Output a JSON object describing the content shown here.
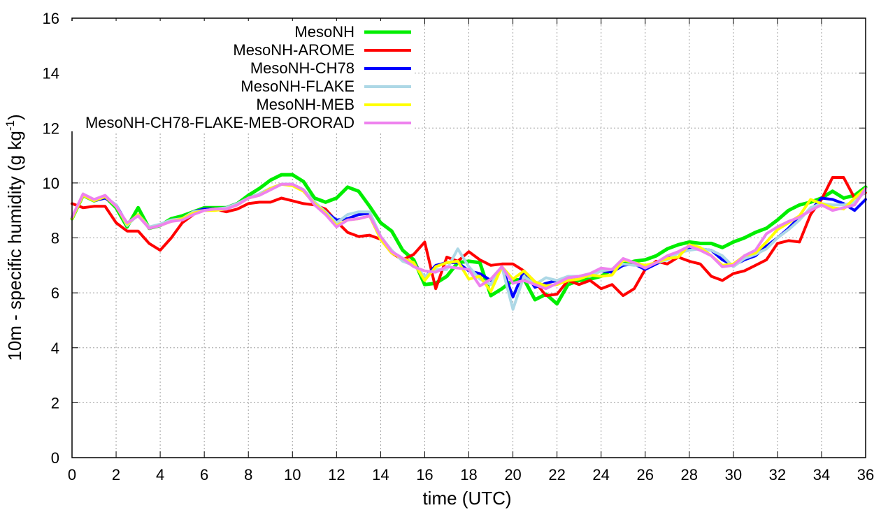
{
  "chart_data": {
    "type": "line",
    "title": "",
    "xlabel": "time (UTC)",
    "ylabel_main": "10m - specific humidity (g kg",
    "ylabel_sup": "-1",
    "ylabel_close": ")",
    "xlim": [
      0,
      36
    ],
    "ylim": [
      0,
      16
    ],
    "xticks": [
      0,
      2,
      4,
      6,
      8,
      10,
      12,
      14,
      16,
      18,
      20,
      22,
      24,
      26,
      28,
      30,
      32,
      34,
      36
    ],
    "yticks": [
      0,
      2,
      4,
      6,
      8,
      10,
      12,
      14,
      16
    ],
    "grid": true,
    "legend_position": "top-left",
    "x": [
      0,
      0.5,
      1,
      1.5,
      2,
      2.5,
      3,
      3.5,
      4,
      4.5,
      5,
      5.5,
      6,
      6.5,
      7,
      7.5,
      8,
      8.5,
      9,
      9.5,
      10,
      10.5,
      11,
      11.5,
      12,
      12.5,
      13,
      13.5,
      14,
      14.5,
      15,
      15.5,
      16,
      16.5,
      17,
      17.5,
      18,
      18.5,
      19,
      19.5,
      20,
      20.5,
      21,
      21.5,
      22,
      22.5,
      23,
      23.5,
      24,
      24.5,
      25,
      25.5,
      26,
      26.5,
      27,
      27.5,
      28,
      28.5,
      29,
      29.5,
      30,
      30.5,
      31,
      31.5,
      32,
      32.5,
      33,
      33.5,
      34,
      34.5,
      35,
      35.5,
      36
    ],
    "series": [
      {
        "name": "MesoNH",
        "color": "#00ee00",
        "width": 5,
        "values": [
          8.7,
          9.55,
          9.35,
          9.5,
          9.1,
          8.4,
          9.1,
          8.35,
          8.45,
          8.7,
          8.8,
          8.95,
          9.1,
          9.1,
          9.1,
          9.25,
          9.55,
          9.8,
          10.1,
          10.3,
          10.3,
          10.05,
          9.45,
          9.3,
          9.45,
          9.85,
          9.7,
          9.15,
          8.55,
          8.25,
          7.55,
          7.2,
          6.3,
          6.35,
          6.6,
          7.1,
          7.15,
          7.1,
          5.9,
          6.15,
          6.45,
          6.5,
          5.75,
          5.95,
          5.6,
          6.3,
          6.45,
          6.5,
          6.6,
          6.85,
          7.05,
          7.15,
          7.2,
          7.35,
          7.6,
          7.75,
          7.85,
          7.8,
          7.8,
          7.65,
          7.85,
          8.0,
          8.2,
          8.35,
          8.65,
          9.0,
          9.2,
          9.3,
          9.45,
          9.7,
          9.45,
          9.55,
          9.85
        ]
      },
      {
        "name": "MesoNH-AROME",
        "color": "#ff0000",
        "width": 4,
        "values": [
          9.25,
          9.1,
          9.15,
          9.15,
          8.55,
          8.25,
          8.25,
          7.8,
          7.55,
          8.0,
          8.55,
          8.85,
          9.05,
          9.05,
          8.95,
          9.05,
          9.25,
          9.3,
          9.3,
          9.45,
          9.35,
          9.25,
          9.2,
          9.05,
          8.6,
          8.2,
          8.05,
          8.1,
          7.95,
          7.45,
          7.2,
          7.4,
          7.85,
          6.15,
          7.3,
          7.15,
          7.5,
          7.2,
          7.0,
          7.05,
          7.05,
          6.8,
          6.4,
          5.9,
          5.95,
          6.45,
          6.3,
          6.45,
          6.15,
          6.3,
          5.9,
          6.15,
          6.85,
          7.15,
          7.05,
          7.3,
          7.15,
          7.05,
          6.6,
          6.45,
          6.7,
          6.8,
          7.0,
          7.2,
          7.8,
          7.9,
          7.85,
          8.85,
          9.4,
          10.2,
          10.2,
          9.45,
          9.65
        ]
      },
      {
        "name": "MesoNH-CH78",
        "color": "#0000ff",
        "width": 4,
        "values": [
          8.75,
          9.55,
          9.35,
          9.45,
          9.2,
          8.5,
          8.85,
          8.35,
          8.45,
          8.65,
          8.7,
          8.95,
          9.05,
          9.05,
          9.1,
          9.25,
          9.45,
          9.6,
          9.8,
          9.95,
          9.95,
          9.75,
          9.3,
          8.95,
          8.65,
          8.7,
          8.85,
          8.9,
          8.0,
          7.5,
          7.25,
          7.1,
          6.55,
          7.0,
          7.1,
          7.1,
          6.8,
          6.7,
          6.45,
          6.95,
          5.85,
          6.8,
          6.2,
          6.35,
          6.45,
          6.55,
          6.6,
          6.65,
          6.8,
          6.75,
          7.0,
          7.05,
          6.85,
          7.05,
          7.25,
          7.45,
          7.6,
          7.6,
          7.55,
          7.2,
          7.0,
          7.2,
          7.35,
          7.7,
          8.0,
          8.35,
          8.75,
          9.0,
          9.45,
          9.4,
          9.25,
          9.0,
          9.4
        ]
      },
      {
        "name": "MesoNH-FLAKE",
        "color": "#add8e6",
        "width": 4,
        "values": [
          8.75,
          9.6,
          9.4,
          9.5,
          9.2,
          8.45,
          8.85,
          8.4,
          8.5,
          8.65,
          8.7,
          8.95,
          9.0,
          9.05,
          9.1,
          9.25,
          9.45,
          9.6,
          9.8,
          9.95,
          9.95,
          9.75,
          9.3,
          8.95,
          8.55,
          8.85,
          8.95,
          8.95,
          8.05,
          7.55,
          7.15,
          7.0,
          6.6,
          6.85,
          6.85,
          7.6,
          6.95,
          6.5,
          6.3,
          6.95,
          5.4,
          6.6,
          6.3,
          6.55,
          6.45,
          6.6,
          6.6,
          6.6,
          6.8,
          6.85,
          7.05,
          7.0,
          7.0,
          7.1,
          7.2,
          7.45,
          7.55,
          7.6,
          7.55,
          7.35,
          6.95,
          7.25,
          7.4,
          7.6,
          8.0,
          8.3,
          8.65,
          9.1,
          9.25,
          9.2,
          9.2,
          9.3,
          9.7
        ]
      },
      {
        "name": "MesoNH-MEB",
        "color": "#ffff00",
        "width": 4,
        "values": [
          8.7,
          9.55,
          9.35,
          9.5,
          9.15,
          8.5,
          8.85,
          8.35,
          8.45,
          8.6,
          8.7,
          8.9,
          9.0,
          9.0,
          9.05,
          9.2,
          9.45,
          9.55,
          9.8,
          9.95,
          9.9,
          9.7,
          9.25,
          8.9,
          8.45,
          8.65,
          8.7,
          8.8,
          7.95,
          7.45,
          7.25,
          7.1,
          6.45,
          6.95,
          7.1,
          7.15,
          6.5,
          6.6,
          6.05,
          6.95,
          6.5,
          6.8,
          6.4,
          6.25,
          6.3,
          6.45,
          6.5,
          6.65,
          6.6,
          6.65,
          7.2,
          7.1,
          7.0,
          7.1,
          7.25,
          7.3,
          7.75,
          7.65,
          7.35,
          7.0,
          7.05,
          7.35,
          7.45,
          7.85,
          8.3,
          8.55,
          8.8,
          9.4,
          9.25,
          9.1,
          9.05,
          9.45,
          9.8
        ]
      },
      {
        "name": "MesoNH-CH78-FLAKE-MEB-ORORAD",
        "color": "#ee82ee",
        "width": 4,
        "values": [
          8.75,
          9.6,
          9.4,
          9.55,
          9.15,
          8.55,
          8.8,
          8.35,
          8.45,
          8.6,
          8.65,
          8.85,
          9.0,
          9.05,
          9.05,
          9.2,
          9.45,
          9.55,
          9.75,
          9.95,
          9.95,
          9.75,
          9.2,
          8.85,
          8.4,
          8.65,
          8.7,
          8.8,
          8.05,
          7.5,
          7.25,
          6.95,
          6.8,
          6.75,
          6.95,
          6.9,
          6.85,
          6.25,
          6.5,
          6.95,
          6.35,
          6.45,
          6.3,
          6.15,
          6.35,
          6.55,
          6.6,
          6.7,
          6.9,
          6.85,
          7.25,
          7.1,
          6.9,
          7.1,
          7.35,
          7.5,
          7.7,
          7.55,
          7.35,
          6.95,
          7.0,
          7.35,
          7.55,
          8.15,
          8.4,
          8.6,
          8.75,
          9.0,
          9.2,
          9.0,
          9.1,
          9.2,
          9.8
        ]
      }
    ]
  }
}
